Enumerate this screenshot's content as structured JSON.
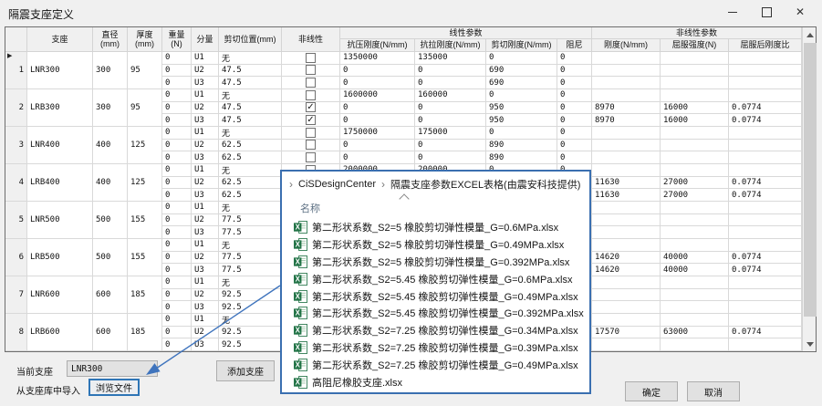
{
  "window": {
    "title": "隔震支座定义",
    "minimize": "minimize",
    "maximize": "maximize",
    "close": "close"
  },
  "table": {
    "header": {
      "bearing": "支座",
      "diameter": "直径\n(mm)",
      "thickness": "厚度\n(mm)",
      "weight": "重量\n(N)",
      "component": "分量",
      "shear_position": "剪切位置(mm)",
      "nonlinear": "非线性",
      "linear_group": "线性参数",
      "nonlinear_group": "非线性参数",
      "compression": "抗压刚度(N/mm)",
      "tension": "抗拉刚度(N/mm)",
      "shear": "剪切刚度(N/mm)",
      "damping": "阻尼",
      "stiffness": "刚度(N/mm)",
      "yield_strength": "屈服强度(N)",
      "post_yield_ratio": "屈服后刚度比"
    },
    "groups": [
      {
        "num": "1",
        "name": "LNR300",
        "diameter": "300",
        "thickness": "95",
        "current": true,
        "rows": [
          {
            "w": "0",
            "c": "U1",
            "sp": "无",
            "nl": false,
            "kc": "1350000",
            "kt": "135000",
            "ks": "0",
            "dp": "0",
            "k": "",
            "fy": "",
            "r": ""
          },
          {
            "w": "0",
            "c": "U2",
            "sp": "47.5",
            "nl": false,
            "kc": "0",
            "kt": "0",
            "ks": "690",
            "dp": "0",
            "k": "",
            "fy": "",
            "r": ""
          },
          {
            "w": "0",
            "c": "U3",
            "sp": "47.5",
            "nl": false,
            "kc": "0",
            "kt": "0",
            "ks": "690",
            "dp": "0",
            "k": "",
            "fy": "",
            "r": ""
          }
        ]
      },
      {
        "num": "2",
        "name": "LRB300",
        "diameter": "300",
        "thickness": "95",
        "current": false,
        "rows": [
          {
            "w": "0",
            "c": "U1",
            "sp": "无",
            "nl": false,
            "kc": "1600000",
            "kt": "160000",
            "ks": "0",
            "dp": "0",
            "k": "",
            "fy": "",
            "r": ""
          },
          {
            "w": "0",
            "c": "U2",
            "sp": "47.5",
            "nl": true,
            "kc": "0",
            "kt": "0",
            "ks": "950",
            "dp": "0",
            "k": "8970",
            "fy": "16000",
            "r": "0.0774"
          },
          {
            "w": "0",
            "c": "U3",
            "sp": "47.5",
            "nl": true,
            "kc": "0",
            "kt": "0",
            "ks": "950",
            "dp": "0",
            "k": "8970",
            "fy": "16000",
            "r": "0.0774"
          }
        ]
      },
      {
        "num": "3",
        "name": "LNR400",
        "diameter": "400",
        "thickness": "125",
        "current": false,
        "rows": [
          {
            "w": "0",
            "c": "U1",
            "sp": "无",
            "nl": false,
            "kc": "1750000",
            "kt": "175000",
            "ks": "0",
            "dp": "0",
            "k": "",
            "fy": "",
            "r": ""
          },
          {
            "w": "0",
            "c": "U2",
            "sp": "62.5",
            "nl": false,
            "kc": "0",
            "kt": "0",
            "ks": "890",
            "dp": "0",
            "k": "",
            "fy": "",
            "r": ""
          },
          {
            "w": "0",
            "c": "U3",
            "sp": "62.5",
            "nl": false,
            "kc": "0",
            "kt": "0",
            "ks": "890",
            "dp": "0",
            "k": "",
            "fy": "",
            "r": ""
          }
        ]
      },
      {
        "num": "4",
        "name": "LRB400",
        "diameter": "400",
        "thickness": "125",
        "current": false,
        "rows": [
          {
            "w": "0",
            "c": "U1",
            "sp": "无",
            "nl": false,
            "kc": "2000000",
            "kt": "200000",
            "ks": "0",
            "dp": "0",
            "k": "",
            "fy": "",
            "r": ""
          },
          {
            "w": "0",
            "c": "U2",
            "sp": "62.5",
            "nl": false,
            "kc": "",
            "kt": "",
            "ks": "",
            "dp": "",
            "k": "11630",
            "fy": "27000",
            "r": "0.0774"
          },
          {
            "w": "0",
            "c": "U3",
            "sp": "62.5",
            "nl": false,
            "kc": "",
            "kt": "",
            "ks": "",
            "dp": "",
            "k": "11630",
            "fy": "27000",
            "r": "0.0774"
          }
        ]
      },
      {
        "num": "5",
        "name": "LNR500",
        "diameter": "500",
        "thickness": "155",
        "current": false,
        "rows": [
          {
            "w": "0",
            "c": "U1",
            "sp": "无",
            "nl": false,
            "kc": "",
            "kt": "",
            "ks": "",
            "dp": "",
            "k": "",
            "fy": "",
            "r": ""
          },
          {
            "w": "0",
            "c": "U2",
            "sp": "77.5",
            "nl": false,
            "kc": "",
            "kt": "",
            "ks": "",
            "dp": "",
            "k": "",
            "fy": "",
            "r": ""
          },
          {
            "w": "0",
            "c": "U3",
            "sp": "77.5",
            "nl": false,
            "kc": "",
            "kt": "",
            "ks": "",
            "dp": "",
            "k": "",
            "fy": "",
            "r": ""
          }
        ]
      },
      {
        "num": "6",
        "name": "LRB500",
        "diameter": "500",
        "thickness": "155",
        "current": false,
        "rows": [
          {
            "w": "0",
            "c": "U1",
            "sp": "无",
            "nl": false,
            "kc": "",
            "kt": "",
            "ks": "",
            "dp": "",
            "k": "",
            "fy": "",
            "r": ""
          },
          {
            "w": "0",
            "c": "U2",
            "sp": "77.5",
            "nl": false,
            "kc": "",
            "kt": "",
            "ks": "",
            "dp": "",
            "k": "14620",
            "fy": "40000",
            "r": "0.0774"
          },
          {
            "w": "0",
            "c": "U3",
            "sp": "77.5",
            "nl": false,
            "kc": "",
            "kt": "",
            "ks": "",
            "dp": "",
            "k": "14620",
            "fy": "40000",
            "r": "0.0774"
          }
        ]
      },
      {
        "num": "7",
        "name": "LNR600",
        "diameter": "600",
        "thickness": "185",
        "current": false,
        "rows": [
          {
            "w": "0",
            "c": "U1",
            "sp": "无",
            "nl": false,
            "kc": "",
            "kt": "",
            "ks": "",
            "dp": "",
            "k": "",
            "fy": "",
            "r": ""
          },
          {
            "w": "0",
            "c": "U2",
            "sp": "92.5",
            "nl": false,
            "kc": "",
            "kt": "",
            "ks": "",
            "dp": "",
            "k": "",
            "fy": "",
            "r": ""
          },
          {
            "w": "0",
            "c": "U3",
            "sp": "92.5",
            "nl": false,
            "kc": "",
            "kt": "",
            "ks": "",
            "dp": "",
            "k": "",
            "fy": "",
            "r": ""
          }
        ]
      },
      {
        "num": "8",
        "name": "LRB600",
        "diameter": "600",
        "thickness": "185",
        "current": false,
        "rows": [
          {
            "w": "0",
            "c": "U1",
            "sp": "无",
            "nl": false,
            "kc": "",
            "kt": "",
            "ks": "",
            "dp": "",
            "k": "",
            "fy": "",
            "r": ""
          },
          {
            "w": "0",
            "c": "U2",
            "sp": "92.5",
            "nl": false,
            "kc": "",
            "kt": "",
            "ks": "",
            "dp": "",
            "k": "17570",
            "fy": "63000",
            "r": "0.0774"
          },
          {
            "w": "0",
            "c": "U3",
            "sp": "92.5",
            "nl": false,
            "kc": "",
            "kt": "",
            "ks": "",
            "dp": "",
            "k": "",
            "fy": "",
            "r": ""
          }
        ]
      }
    ]
  },
  "popup": {
    "breadcrumb_root": "CiSDesignCenter",
    "breadcrumb_folder": "隔震支座参数EXCEL表格(由震安科技提供)",
    "name_header": "名称",
    "files": [
      "第二形状系数_S2=5 橡胶剪切弹性模量_G=0.6MPa.xlsx",
      "第二形状系数_S2=5 橡胶剪切弹性模量_G=0.49MPa.xlsx",
      "第二形状系数_S2=5 橡胶剪切弹性模量_G=0.392MPa.xlsx",
      "第二形状系数_S2=5.45 橡胶剪切弹性模量_G=0.6MPa.xlsx",
      "第二形状系数_S2=5.45 橡胶剪切弹性模量_G=0.49MPa.xlsx",
      "第二形状系数_S2=5.45 橡胶剪切弹性模量_G=0.392MPa.xlsx",
      "第二形状系数_S2=7.25 橡胶剪切弹性模量_G=0.34MPa.xlsx",
      "第二形状系数_S2=7.25 橡胶剪切弹性模量_G=0.39MPa.xlsx",
      "第二形状系数_S2=7.25 橡胶剪切弹性模量_G=0.49MPa.xlsx",
      "高阻尼橡胶支座.xlsx"
    ]
  },
  "footer": {
    "current_label": "当前支座",
    "current_value": "LNR300",
    "add_button": "添加支座",
    "import_label": "从支座库中导入",
    "browse_button": "浏览文件",
    "ok_button": "确定",
    "cancel_button": "取消"
  },
  "colors": {
    "popup_border": "#3a6fb0",
    "arrow_blue": "#3f74bd",
    "excel_green": "#217346",
    "dialog_bg": "#f0f0f0"
  }
}
